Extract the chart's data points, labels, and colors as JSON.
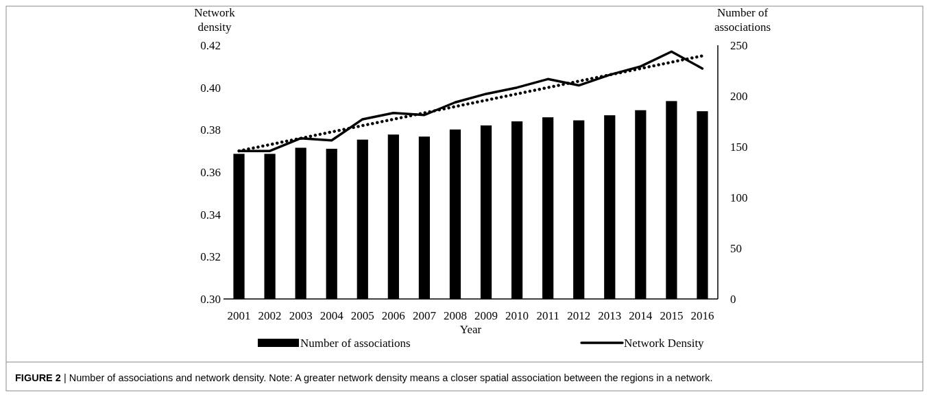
{
  "chart_data": {
    "type": "bar",
    "xlabel": "Year",
    "ylabel": "Network density",
    "y2label": "Number of associations",
    "categories": [
      "2001",
      "2002",
      "2003",
      "2004",
      "2005",
      "2006",
      "2007",
      "2008",
      "2009",
      "2010",
      "2011",
      "2012",
      "2013",
      "2014",
      "2015",
      "2016"
    ],
    "series": [
      {
        "name": "Number of associations",
        "axis": "y2",
        "color": "#000000",
        "values": [
          143,
          143,
          149,
          148,
          157,
          162,
          160,
          167,
          171,
          175,
          179,
          176,
          181,
          186,
          195,
          185
        ]
      },
      {
        "name": "Network Density",
        "type": "line",
        "color": "#000000",
        "line_style": "solid",
        "values": [
          0.37,
          0.37,
          0.376,
          0.375,
          0.385,
          0.388,
          0.387,
          0.393,
          0.397,
          0.4,
          0.404,
          0.401,
          0.406,
          0.41,
          0.417,
          0.409
        ]
      },
      {
        "type": "line",
        "color": "#000000",
        "line_style": "dotted",
        "values": [
          0.37,
          0.373,
          0.376,
          0.379,
          0.382,
          0.385,
          0.388,
          0.391,
          0.394,
          0.397,
          0.4,
          0.403,
          0.406,
          0.409,
          0.412,
          0.415
        ]
      }
    ],
    "ylim": [
      0.3,
      0.42
    ],
    "yticks": [
      {
        "value": 0.3,
        "label": "0.30"
      },
      {
        "value": 0.32,
        "label": "0.32"
      },
      {
        "value": 0.34,
        "label": "0.34"
      },
      {
        "value": 0.36,
        "label": "0.36"
      },
      {
        "value": 0.38,
        "label": "0.38"
      },
      {
        "value": 0.4,
        "label": "0.40"
      },
      {
        "value": 0.42,
        "label": "0.42"
      }
    ],
    "y2lim": [
      0,
      250
    ],
    "y2ticks": [
      0,
      50,
      100,
      150,
      200,
      250
    ],
    "legend": "bottom",
    "grid": false,
    "annotations": [
      "FIGURE 2 | Number of associations and network density. Note: A greater network density means a closer spatial association between the regions in a network."
    ]
  }
}
